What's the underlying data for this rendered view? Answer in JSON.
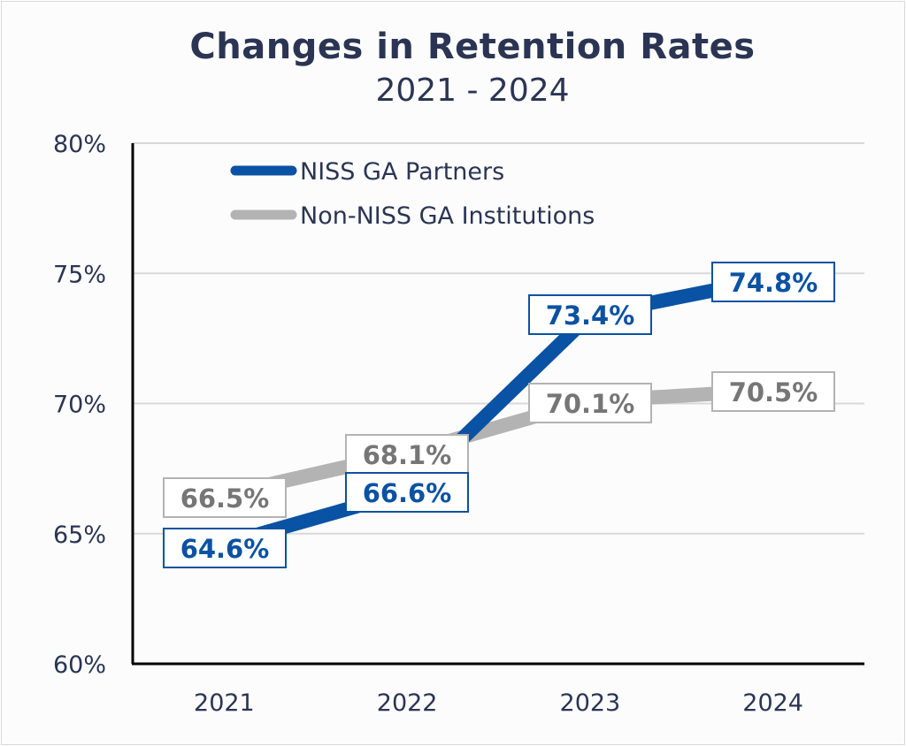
{
  "chart_data": {
    "type": "line",
    "title": "Changes in Retention Rates",
    "subtitle": "2021 - 2024",
    "xlabel": "",
    "ylabel": "",
    "categories": [
      "2021",
      "2022",
      "2023",
      "2024"
    ],
    "ylim": [
      60,
      80
    ],
    "yticks": [
      60,
      65,
      70,
      75,
      80
    ],
    "ytick_labels": [
      "60%",
      "65%",
      "70%",
      "75%",
      "80%"
    ],
    "grid": true,
    "legend_position": "top-left",
    "series": [
      {
        "name": "NISS GA Partners",
        "color": "#0a52a3",
        "values": [
          64.6,
          66.6,
          73.4,
          74.8
        ],
        "labels": [
          "64.6%",
          "66.6%",
          "73.4%",
          "74.8%"
        ]
      },
      {
        "name": "Non-NISS GA Institutions",
        "color": "#b3b3b3",
        "label_color": "#767676",
        "values": [
          66.5,
          68.1,
          70.1,
          70.5
        ],
        "labels": [
          "66.5%",
          "68.1%",
          "70.1%",
          "70.5%"
        ]
      }
    ]
  }
}
